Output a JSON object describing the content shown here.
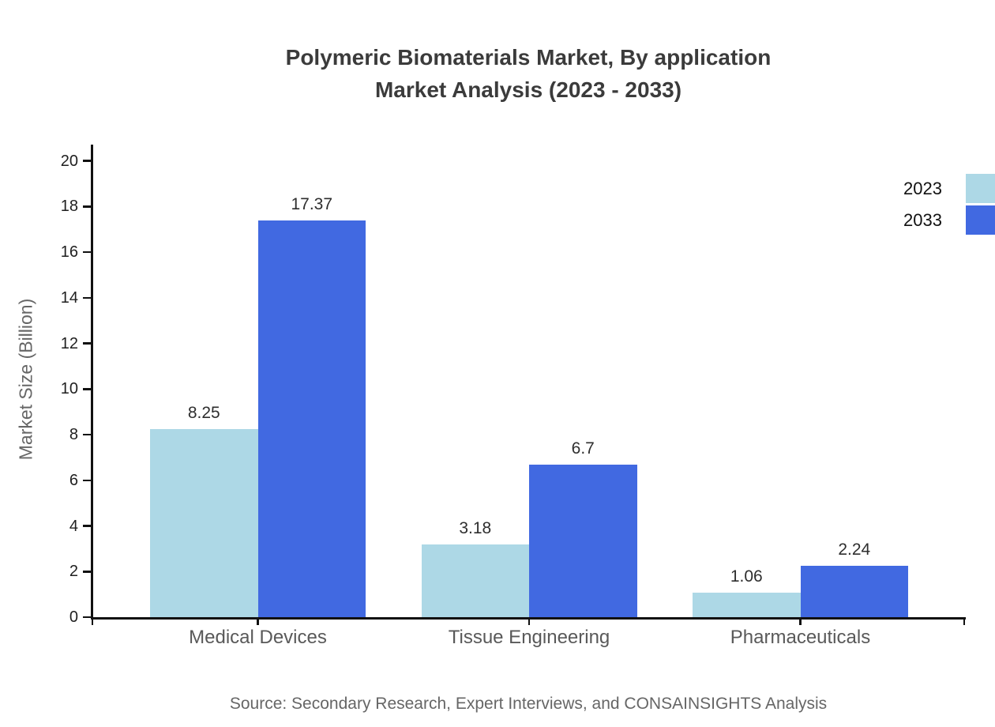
{
  "title": {
    "line1": "Polymeric Biomaterials Market, By application",
    "line2": "Market Analysis (2023 - 2033)"
  },
  "chart_data": {
    "type": "bar",
    "categories": [
      "Medical Devices",
      "Tissue Engineering",
      "Pharmaceuticals"
    ],
    "series": [
      {
        "name": "2023",
        "color": "#ADD8E6",
        "values": [
          8.25,
          3.18,
          1.06
        ]
      },
      {
        "name": "2033",
        "color": "#4169E1",
        "values": [
          17.37,
          6.7,
          2.24
        ]
      }
    ],
    "value_labels": {
      "2023": [
        "8.25",
        "3.18",
        "1.06"
      ],
      "2033": [
        "17.37",
        "6.7",
        "2.24"
      ]
    },
    "ylabel": "Market Size (Billion)",
    "ylim": [
      0,
      20
    ],
    "yticks": [
      0,
      2,
      4,
      6,
      8,
      10,
      12,
      14,
      16,
      18,
      20
    ],
    "grid": false,
    "legend_position": "top-right",
    "axis_color": "#111111"
  },
  "source": "Source: Secondary Research, Expert Interviews, and CONSAINSIGHTS Analysis"
}
